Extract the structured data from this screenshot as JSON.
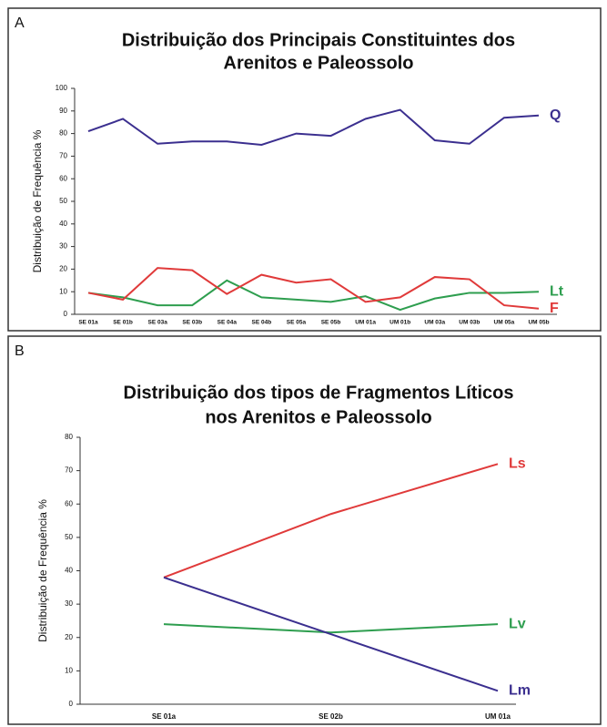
{
  "chart_data": [
    {
      "type": "line",
      "panel": "A",
      "title": [
        "Distribuição dos Principais Constituintes dos",
        "Arenitos e Paleossolo"
      ],
      "y_label": "Distribuição de Frequência %",
      "categories": [
        "SE 01a",
        "SE 01b",
        "SE 03a",
        "SE 03b",
        "SE 04a",
        "SE 04b",
        "SE 05a",
        "SE 05b",
        "UM 01a",
        "UM 01b",
        "UM 03a",
        "UM 03b",
        "UM 05a",
        "UM 05b"
      ],
      "series": [
        {
          "name": "Q",
          "color": "#3b2f8f",
          "values": [
            81,
            86.5,
            75.5,
            76.5,
            76.5,
            75,
            80,
            79,
            86.5,
            90.5,
            77,
            75.5,
            87,
            88
          ]
        },
        {
          "name": "Lt",
          "color": "#2e9e4f",
          "values": [
            9.5,
            7.5,
            4,
            4,
            15,
            7.5,
            6.5,
            5.5,
            8,
            2,
            7,
            9.5,
            9.5,
            10
          ]
        },
        {
          "name": "F",
          "color": "#e03a3a",
          "values": [
            9.5,
            6.5,
            20.5,
            19.5,
            9,
            17.5,
            14,
            15.5,
            5.5,
            7.5,
            16.5,
            15.5,
            4,
            2.5
          ]
        }
      ],
      "ylim": [
        0,
        100
      ],
      "yticks": [
        0,
        10,
        20,
        30,
        40,
        50,
        60,
        70,
        80,
        90,
        100
      ],
      "grid": false
    },
    {
      "type": "line",
      "panel": "B",
      "title": [
        "Distribuição dos tipos de Fragmentos Líticos",
        "nos Arenitos e Paleossolo"
      ],
      "y_label": "Distribuição de Frequência %",
      "categories": [
        "SE 01a",
        "SE 02b",
        "UM 01a"
      ],
      "series": [
        {
          "name": "Ls",
          "color": "#e03a3a",
          "values": [
            38,
            57,
            72
          ]
        },
        {
          "name": "Lv",
          "color": "#2e9e4f",
          "values": [
            24,
            21.5,
            24
          ]
        },
        {
          "name": "Lm",
          "color": "#3b2f8f",
          "values": [
            38,
            21,
            4
          ]
        }
      ],
      "ylim": [
        0,
        80
      ],
      "yticks": [
        0,
        10,
        20,
        30,
        40,
        50,
        60,
        70,
        80
      ],
      "grid": false
    }
  ]
}
